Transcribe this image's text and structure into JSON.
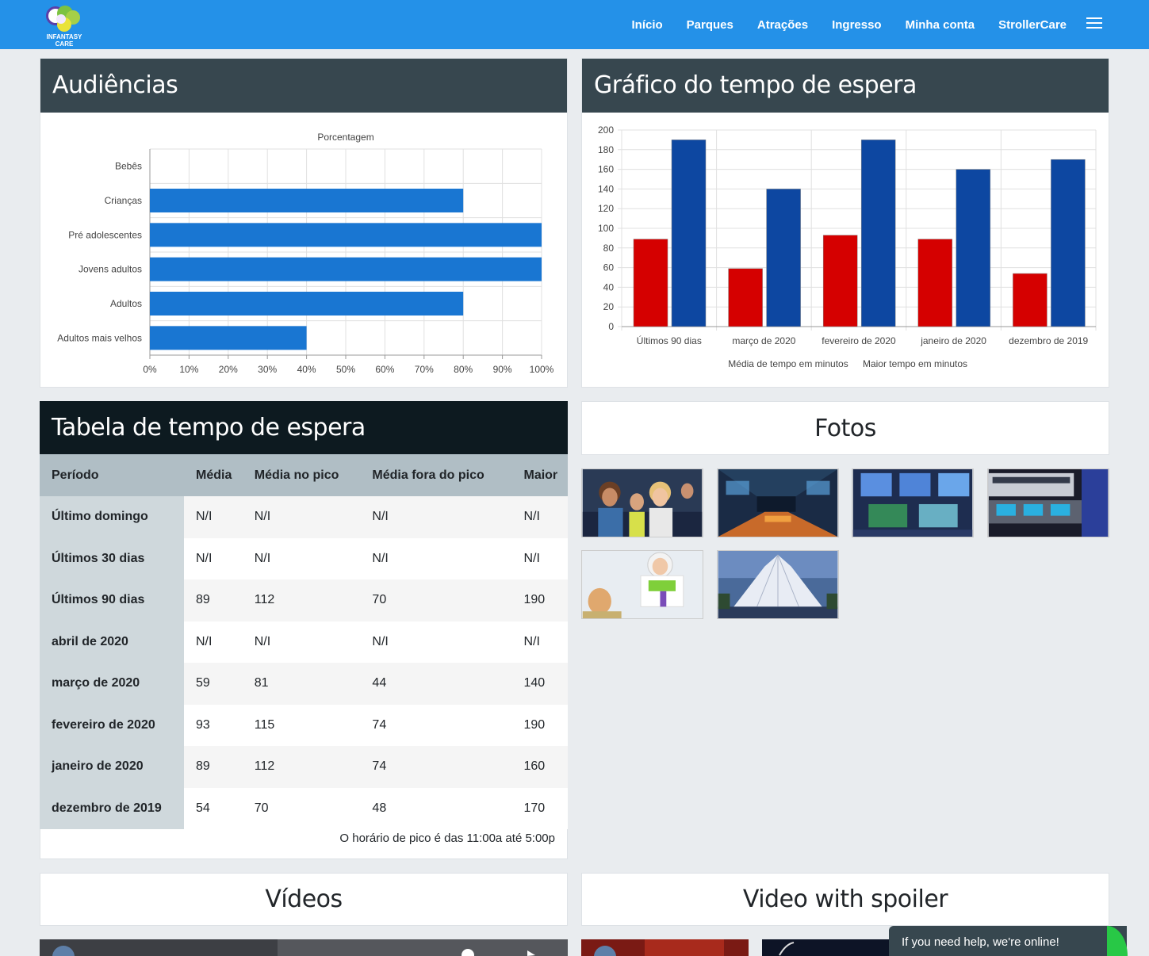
{
  "nav": {
    "logo_text": "INFANTASY CARE",
    "items": [
      "Início",
      "Parques",
      "Atrações",
      "Ingresso",
      "Minha conta",
      "StrollerCare"
    ]
  },
  "audiences": {
    "title": "Audiências",
    "chart_title": "Porcentagem"
  },
  "wait_chart": {
    "title": "Gráfico do tempo de espera"
  },
  "chart_data": [
    {
      "type": "bar",
      "orientation": "horizontal",
      "title": "Porcentagem",
      "categories": [
        "Bebês",
        "Crianças",
        "Pré adolescentes",
        "Jovens adultos",
        "Adultos",
        "Adultos mais velhos"
      ],
      "values": [
        0,
        80,
        100,
        100,
        80,
        40
      ],
      "xlim": [
        0,
        100
      ],
      "x_ticks": [
        "0%",
        "10%",
        "20%",
        "30%",
        "40%",
        "50%",
        "60%",
        "70%",
        "80%",
        "90%",
        "100%"
      ],
      "color": "#1976d2",
      "grid": true
    },
    {
      "type": "bar",
      "categories": [
        "Últimos 90 dias",
        "março de 2020",
        "fevereiro de 2020",
        "janeiro de 2020",
        "dezembro de 2019"
      ],
      "series": [
        {
          "name": "Média de tempo em minutos",
          "values": [
            89,
            59,
            93,
            89,
            54
          ],
          "color": "#d50000"
        },
        {
          "name": "Maior tempo em minutos",
          "values": [
            190,
            140,
            190,
            160,
            170
          ],
          "color": "#0d47a1"
        }
      ],
      "ylim": [
        0,
        200
      ],
      "y_ticks": [
        "0",
        "20",
        "40",
        "60",
        "80",
        "100",
        "120",
        "140",
        "160",
        "180",
        "200"
      ],
      "legend": "bottom",
      "grid": true
    }
  ],
  "table": {
    "title": "Tabela de tempo de espera",
    "headers": [
      "Período",
      "Média",
      "Média no pico",
      "Média fora do pico",
      "Maior"
    ],
    "rows": [
      [
        "Último domingo",
        "N/I",
        "N/I",
        "N/I",
        "N/I"
      ],
      [
        "Últimos 30 dias",
        "N/I",
        "N/I",
        "N/I",
        "N/I"
      ],
      [
        "Últimos 90 dias",
        "89",
        "112",
        "70",
        "190"
      ],
      [
        "abril de 2020",
        "N/I",
        "N/I",
        "N/I",
        "N/I"
      ],
      [
        "março de 2020",
        "59",
        "81",
        "44",
        "140"
      ],
      [
        "fevereiro de 2020",
        "93",
        "115",
        "74",
        "190"
      ],
      [
        "janeiro de 2020",
        "89",
        "112",
        "74",
        "160"
      ],
      [
        "dezembro de 2019",
        "54",
        "70",
        "48",
        "170"
      ]
    ],
    "peak_note": "O horário de pico é das 11:00a até 5:00p"
  },
  "photos": {
    "title": "Fotos"
  },
  "videos": {
    "title": "Vídeos",
    "spoiler_title": "Video with spoiler"
  },
  "chat": {
    "text": "If you need help, we're online!"
  }
}
